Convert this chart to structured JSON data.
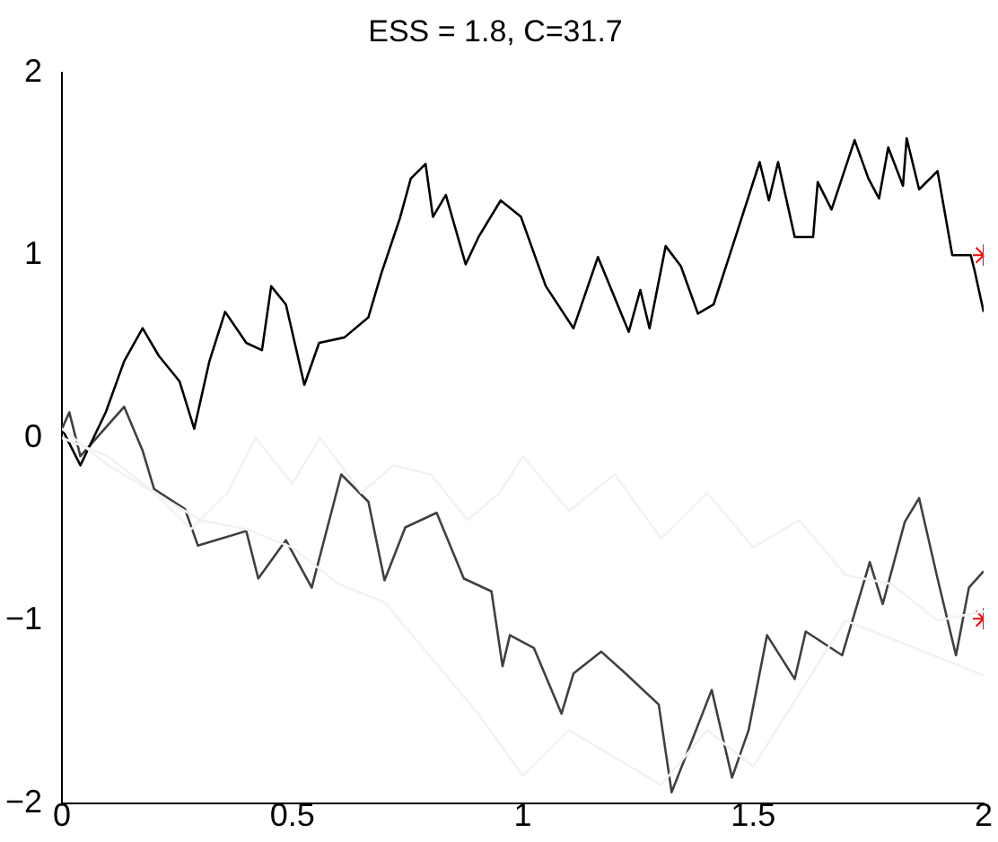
{
  "chart_data": {
    "type": "line",
    "title": "ESS = 1.8, C=31.7",
    "xlim": [
      0,
      2
    ],
    "xticks": [
      0,
      0.5,
      1,
      1.5,
      2
    ],
    "ylim": [
      -2,
      2
    ],
    "yticks": [
      -2,
      -1,
      0,
      1,
      2
    ],
    "grid": false,
    "legend": false,
    "marker": "none",
    "line_style": "solid",
    "series": [
      {
        "color": "#f2f2f2",
        "x": [
          0,
          0.1,
          0.2,
          0.28,
          0.36,
          0.42,
          0.5,
          0.56,
          0.65,
          0.72,
          0.8,
          0.88,
          0.95,
          1.0,
          1.1,
          1.2,
          1.3,
          1.4,
          1.5,
          1.6,
          1.7,
          1.8,
          1.9,
          2.0
        ],
        "values": [
          0.05,
          -0.15,
          -0.3,
          -0.5,
          -0.3,
          0,
          -0.25,
          0,
          -0.3,
          -0.15,
          -0.2,
          -0.45,
          -0.3,
          -0.1,
          -0.4,
          -0.2,
          -0.55,
          -0.3,
          -0.6,
          -0.45,
          -0.75,
          -0.8,
          -1.0,
          -0.95
        ]
      },
      {
        "color": "#f2f2f2",
        "x": [
          0,
          0.1,
          0.2,
          0.3,
          0.4,
          0.5,
          0.6,
          0.7,
          0.8,
          0.9,
          1.0,
          1.1,
          1.2,
          1.3,
          1.4,
          1.5,
          1.6,
          1.7,
          1.8,
          1.9,
          2.0
        ],
        "values": [
          0,
          -0.1,
          -0.3,
          -0.45,
          -0.5,
          -0.6,
          -0.8,
          -0.9,
          -1.2,
          -1.5,
          -1.85,
          -1.6,
          -1.75,
          -1.9,
          -1.6,
          -1.8,
          -1.4,
          -1.0,
          -1.1,
          -1.2,
          -1.3
        ]
      },
      {
        "color": "#000000",
        "x": [
          0,
          0.04,
          0.095,
          0.135,
          0.175,
          0.21,
          0.255,
          0.287,
          0.32,
          0.354,
          0.4,
          0.434,
          0.454,
          0.486,
          0.526,
          0.558,
          0.613,
          0.665,
          0.693,
          0.733,
          0.757,
          0.789,
          0.805,
          0.833,
          0.876,
          0.904,
          0.952,
          0.996,
          1.03,
          1.05,
          1.11,
          1.163,
          1.23,
          1.255,
          1.275,
          1.31,
          1.343,
          1.38,
          1.414,
          1.454,
          1.514,
          1.534,
          1.554,
          1.59,
          1.63,
          1.64,
          1.67,
          1.72,
          1.75,
          1.773,
          1.793,
          1.825,
          1.833,
          1.86,
          1.9,
          1.932,
          1.972,
          1.98,
          2.0
        ],
        "values": [
          0.05,
          -0.15,
          0.14,
          0.42,
          0.6,
          0.45,
          0.31,
          0.05,
          0.42,
          0.69,
          0.52,
          0.48,
          0.83,
          0.73,
          0.29,
          0.52,
          0.55,
          0.66,
          0.9,
          1.2,
          1.42,
          1.5,
          1.21,
          1.33,
          0.95,
          1.1,
          1.3,
          1.21,
          0.97,
          0.83,
          0.6,
          0.99,
          0.58,
          0.81,
          0.6,
          1.05,
          0.94,
          0.68,
          0.73,
          1.04,
          1.51,
          1.3,
          1.51,
          1.1,
          1.1,
          1.4,
          1.25,
          1.63,
          1.42,
          1.31,
          1.59,
          1.38,
          1.64,
          1.36,
          1.46,
          1.0,
          1.0,
          0.92,
          0.69
        ]
      },
      {
        "color": "#404040",
        "x": [
          0,
          0.016,
          0.04,
          0.135,
          0.175,
          0.2,
          0.267,
          0.295,
          0.4,
          0.426,
          0.486,
          0.542,
          0.606,
          0.665,
          0.7,
          0.745,
          0.813,
          0.872,
          0.932,
          0.956,
          0.972,
          1.024,
          1.084,
          1.11,
          1.17,
          1.223,
          1.295,
          1.323,
          1.41,
          1.454,
          1.49,
          1.53,
          1.59,
          1.614,
          1.693,
          1.753,
          1.781,
          1.829,
          1.86,
          1.9,
          1.94,
          1.968,
          2.0
        ],
        "values": [
          0.05,
          0.14,
          -0.1,
          0.17,
          -0.07,
          -0.28,
          -0.39,
          -0.59,
          -0.51,
          -0.77,
          -0.56,
          -0.82,
          -0.2,
          -0.35,
          -0.78,
          -0.49,
          -0.41,
          -0.77,
          -0.84,
          -1.25,
          -1.08,
          -1.15,
          -1.51,
          -1.29,
          -1.17,
          -1.29,
          -1.46,
          -1.94,
          -1.38,
          -1.86,
          -1.6,
          -1.08,
          -1.32,
          -1.06,
          -1.19,
          -0.68,
          -0.91,
          -0.46,
          -0.33,
          -0.77,
          -1.19,
          -0.82,
          -0.73
        ]
      },
      {
        "type": "scatter",
        "marker": "cross",
        "color": "#ff0000",
        "x": [
          2,
          2
        ],
        "values": [
          1.0,
          -0.99
        ]
      }
    ]
  }
}
